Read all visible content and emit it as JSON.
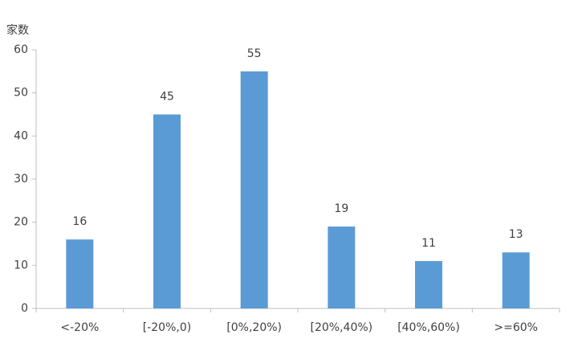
{
  "chart_data": {
    "type": "bar",
    "y_label": "家数",
    "categories": [
      "<-20%",
      "[-20%,0)",
      "[0%,20%)",
      "[20%,40%)",
      "[40%,60%)",
      ">=60%"
    ],
    "values": [
      16,
      45,
      55,
      19,
      11,
      13
    ],
    "color": "#5b9bd5",
    "ylim": [
      0,
      60
    ],
    "yticks": [
      0,
      10,
      20,
      30,
      40,
      50,
      60
    ],
    "grid": false,
    "data_labels": true
  }
}
